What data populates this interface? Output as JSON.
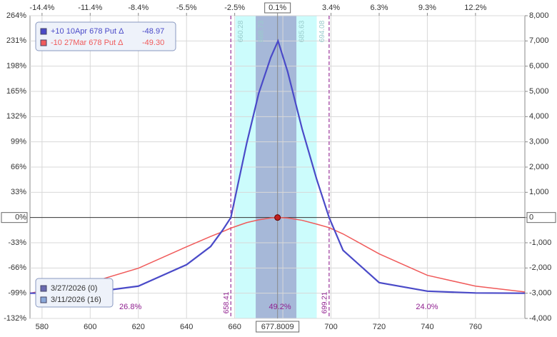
{
  "chart_data": {
    "type": "line",
    "x": [
      575,
      600,
      620,
      640,
      650,
      655,
      658.41,
      665,
      670,
      675,
      678,
      682,
      688,
      694,
      699.21,
      705,
      720,
      740,
      760,
      780.5
    ],
    "series": [
      {
        "name": "3/27/2026 (0)",
        "color": "#4a4ac8",
        "values": [
          -3000,
          -2970,
          -2720,
          -1870,
          -1150,
          -500,
          0,
          2950,
          4930,
          6350,
          7000,
          5780,
          3510,
          1530,
          0,
          -1300,
          -2580,
          -2920,
          -2990,
          -3000
        ]
      },
      {
        "name": "3/11/2026 (16)",
        "color": "#f05a5a",
        "values": [
          -3000,
          -2580,
          -2010,
          -1160,
          -750,
          -560,
          -420,
          -200,
          -90,
          -15,
          0,
          -20,
          -110,
          -260,
          -400,
          -650,
          -1440,
          -2290,
          -2720,
          -2950
        ]
      }
    ],
    "xlim": [
      575,
      780.5
    ],
    "xticks": [
      580,
      600,
      620,
      640,
      660,
      680,
      700,
      720,
      740,
      760
    ],
    "x2ticks": [
      {
        "value": 580,
        "label": "-14.4%"
      },
      {
        "value": 600,
        "label": "-11.4%"
      },
      {
        "value": 620,
        "label": "-8.4%"
      },
      {
        "value": 640,
        "label": "-5.5%"
      },
      {
        "value": 660,
        "label": "-2.5%"
      },
      {
        "value": 677.8009,
        "label": "0.1%"
      },
      {
        "value": 700,
        "label": "3.4%"
      },
      {
        "value": 720,
        "label": "6.3%"
      },
      {
        "value": 740,
        "label": "9.3%"
      },
      {
        "value": 760,
        "label": "12.2%"
      }
    ],
    "ylim": [
      -4000,
      8000
    ],
    "yticks": [
      {
        "value": 8000,
        "label": "264%"
      },
      {
        "value": 7000,
        "label": "231%"
      },
      {
        "value": 6000,
        "label": "198%"
      },
      {
        "value": 5000,
        "label": "165%"
      },
      {
        "value": 4000,
        "label": "132%"
      },
      {
        "value": 3000,
        "label": "99%"
      },
      {
        "value": 2000,
        "label": "66%"
      },
      {
        "value": 1000,
        "label": "33%"
      },
      {
        "value": 0,
        "label": "0%"
      },
      {
        "value": -1000,
        "label": "-33%"
      },
      {
        "value": -2000,
        "label": "-66%"
      },
      {
        "value": -3000,
        "label": "-99%"
      },
      {
        "value": -4000,
        "label": "-132%"
      }
    ],
    "y2lim": [
      -4000,
      8000
    ],
    "y2ticks": [
      {
        "value": 8000,
        "label": "8,000"
      },
      {
        "value": 7000,
        "label": "7,000"
      },
      {
        "value": 6000,
        "label": "6,000"
      },
      {
        "value": 5000,
        "label": "5,000"
      },
      {
        "value": 4000,
        "label": "4,000"
      },
      {
        "value": 3000,
        "label": "3,000"
      },
      {
        "value": 2000,
        "label": "2,000"
      },
      {
        "value": 1000,
        "label": "1,000"
      },
      0,
      {
        "value": -1000,
        "label": "-1,000"
      },
      {
        "value": -2000,
        "label": "-2,000"
      },
      {
        "value": -3000,
        "label": "-3,000"
      },
      {
        "value": -4000,
        "label": "-4,000"
      }
    ],
    "grid": true,
    "current_price": 677.8009,
    "breakevens": [
      658.41,
      699.21
    ],
    "band_outer": [
      660.28,
      694.08
    ],
    "band_inner": [
      668.73,
      685.63
    ],
    "probabilities": [
      26.8,
      49.2,
      24.0
    ],
    "probability_labels": [
      "26.8%",
      "49.2%",
      "24.0%"
    ],
    "positions": [
      {
        "label": "+10 10Apr 678 Put Δ",
        "delta": -48.97,
        "color": "#4a4ac8"
      },
      {
        "label": "-10 27Mar 678 Put Δ",
        "delta": -49.3,
        "delta_label": "-49.30",
        "color": "#f05a5a"
      }
    ]
  }
}
